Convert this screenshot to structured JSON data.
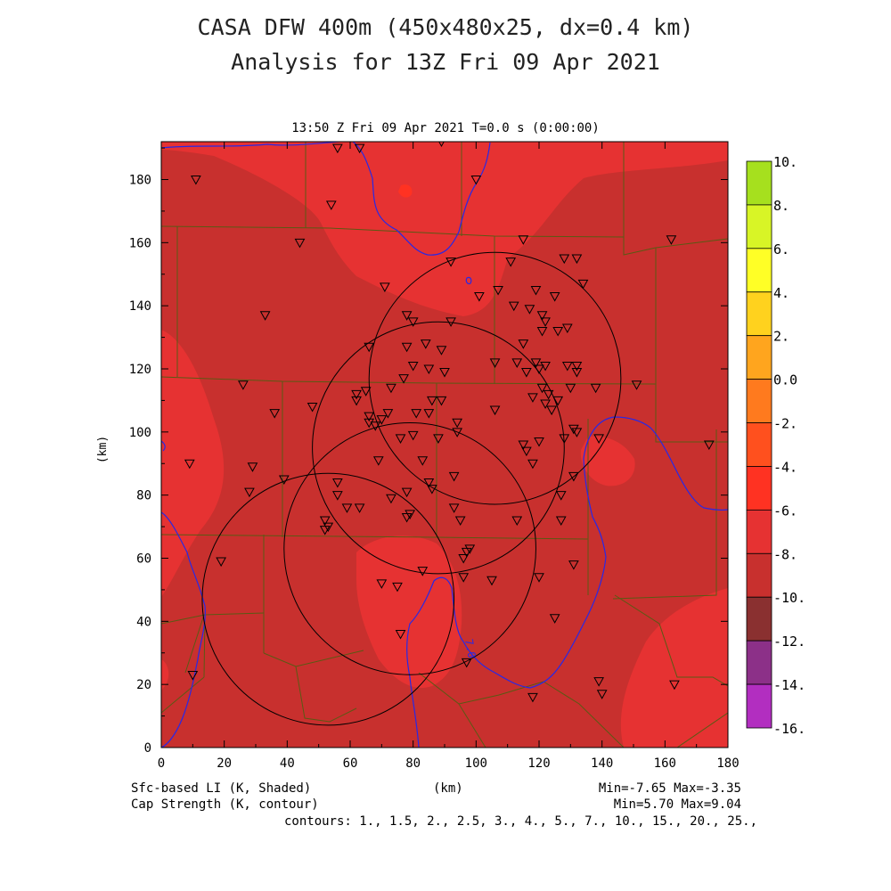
{
  "header": {
    "title": "CASA DFW 400m (450x480x25, dx=0.4 km)",
    "subtitle": "Analysis for 13Z Fri 09 Apr 2021",
    "valid_time": "13:50 Z Fri 09 Apr 2021    T=0.0 s (0:00:00)"
  },
  "axes": {
    "y_label": "(km)",
    "x_label": "(km)",
    "x_ticks": [
      "0",
      "20",
      "40",
      "60",
      "80",
      "100",
      "120",
      "140",
      "160",
      "180"
    ],
    "y_ticks": [
      "0",
      "20",
      "40",
      "60",
      "80",
      "100",
      "120",
      "140",
      "160",
      "180"
    ],
    "x_range": [
      0,
      180
    ],
    "y_range": [
      0,
      192
    ]
  },
  "footer": {
    "shaded_field": "Sfc-based LI (K, Shaded)",
    "contour_field": "Cap Strength (K, contour)",
    "shaded_stats": "Min=-7.65 Max=-3.35",
    "contour_stats": "Min=5.70 Max=9.04",
    "contours": "contours: 1., 1.5, 2., 2.5, 3., 4., 5., 7., 10., 15., 20., 25.,"
  },
  "contour_label": "7.0",
  "colorbar": {
    "labels": [
      "10.",
      "8.",
      "6.",
      "4.",
      "2.",
      "0.0",
      "-2.",
      "-4.",
      "-6.",
      "-8.",
      "-10.",
      "-12.",
      "-14.",
      "-16."
    ],
    "colors": [
      "#a6e01e",
      "#d8f526",
      "#ffff26",
      "#ffd21e",
      "#ffa51e",
      "#ff7a1e",
      "#ff501e",
      "#ff3222",
      "#e63232",
      "#c8302e",
      "#8a3030",
      "#8c3088",
      "#b22ec0",
      "#d640e0"
    ]
  },
  "colors": {
    "field_base": "#c8302e",
    "field_warm": "#e63232",
    "field_hot": "#ff3222",
    "county_lines": "#5a5a14",
    "rivers": "#2828e6",
    "radar_rings": "#000000"
  },
  "radars": [
    {
      "name": "radar-ring-1",
      "x": 53,
      "y": 47,
      "r": 40
    },
    {
      "name": "radar-ring-2",
      "x": 79,
      "y": 63,
      "r": 40
    },
    {
      "name": "radar-ring-3",
      "x": 88,
      "y": 95,
      "r": 40
    },
    {
      "name": "radar-ring-4",
      "x": 106,
      "y": 117,
      "r": 40
    }
  ],
  "stations": [
    [
      11,
      180
    ],
    [
      56,
      190
    ],
    [
      63,
      190
    ],
    [
      89,
      192
    ],
    [
      100,
      180
    ],
    [
      54,
      172
    ],
    [
      44,
      160
    ],
    [
      92,
      154
    ],
    [
      111,
      154
    ],
    [
      115,
      161
    ],
    [
      128,
      155
    ],
    [
      132,
      155
    ],
    [
      33,
      137
    ],
    [
      71,
      146
    ],
    [
      107,
      145
    ],
    [
      119,
      145
    ],
    [
      125,
      143
    ],
    [
      134,
      147
    ],
    [
      101,
      143
    ],
    [
      92,
      135
    ],
    [
      78,
      137
    ],
    [
      80,
      135
    ],
    [
      112,
      140
    ],
    [
      117,
      139
    ],
    [
      121,
      137
    ],
    [
      122,
      135
    ],
    [
      126,
      132
    ],
    [
      129,
      133
    ],
    [
      121,
      132
    ],
    [
      115,
      128
    ],
    [
      106,
      122
    ],
    [
      113,
      122
    ],
    [
      119,
      122
    ],
    [
      122,
      121
    ],
    [
      116,
      119
    ],
    [
      120,
      120
    ],
    [
      129,
      121
    ],
    [
      132,
      121
    ],
    [
      132,
      119
    ],
    [
      66,
      127
    ],
    [
      78,
      127
    ],
    [
      84,
      128
    ],
    [
      89,
      126
    ],
    [
      80,
      121
    ],
    [
      85,
      120
    ],
    [
      90,
      119
    ],
    [
      26,
      115
    ],
    [
      36,
      106
    ],
    [
      48,
      108
    ],
    [
      62,
      112
    ],
    [
      65,
      113
    ],
    [
      73,
      114
    ],
    [
      77,
      117
    ],
    [
      62,
      110
    ],
    [
      66,
      105
    ],
    [
      66,
      103
    ],
    [
      70,
      104
    ],
    [
      72,
      106
    ],
    [
      68,
      102
    ],
    [
      76,
      98
    ],
    [
      81,
      106
    ],
    [
      86,
      110
    ],
    [
      89,
      110
    ],
    [
      85,
      106
    ],
    [
      94,
      103
    ],
    [
      94,
      100
    ],
    [
      88,
      98
    ],
    [
      106,
      107
    ],
    [
      118,
      111
    ],
    [
      123,
      112
    ],
    [
      122,
      109
    ],
    [
      126,
      110
    ],
    [
      130,
      114
    ],
    [
      121,
      114
    ],
    [
      124,
      107
    ],
    [
      138,
      114
    ],
    [
      132,
      100
    ],
    [
      128,
      98
    ],
    [
      120,
      97
    ],
    [
      115,
      96
    ],
    [
      116,
      94
    ],
    [
      131,
      101
    ],
    [
      9,
      90
    ],
    [
      29,
      89
    ],
    [
      39,
      85
    ],
    [
      80,
      99
    ],
    [
      83,
      91
    ],
    [
      86,
      82
    ],
    [
      93,
      76
    ],
    [
      93,
      86
    ],
    [
      85,
      84
    ],
    [
      78,
      81
    ],
    [
      118,
      90
    ],
    [
      131,
      86
    ],
    [
      127,
      80
    ],
    [
      28,
      81
    ],
    [
      56,
      84
    ],
    [
      56,
      80
    ],
    [
      63,
      76
    ],
    [
      59,
      76
    ],
    [
      52,
      72
    ],
    [
      53,
      70
    ],
    [
      52,
      69
    ],
    [
      69,
      91
    ],
    [
      73,
      79
    ],
    [
      78,
      73
    ],
    [
      79,
      74
    ],
    [
      95,
      72
    ],
    [
      113,
      72
    ],
    [
      139,
      98
    ],
    [
      151,
      115
    ],
    [
      174,
      96
    ],
    [
      162,
      161
    ],
    [
      127,
      72
    ],
    [
      19,
      59
    ],
    [
      70,
      52
    ],
    [
      75,
      51
    ],
    [
      83,
      56
    ],
    [
      96,
      54
    ],
    [
      96,
      60
    ],
    [
      98,
      63
    ],
    [
      97,
      62
    ],
    [
      105,
      53
    ],
    [
      120,
      54
    ],
    [
      131,
      58
    ],
    [
      125,
      41
    ],
    [
      97,
      27
    ],
    [
      76,
      36
    ],
    [
      118,
      16
    ],
    [
      140,
      17
    ],
    [
      139,
      21
    ],
    [
      163,
      20
    ],
    [
      10,
      23
    ]
  ]
}
